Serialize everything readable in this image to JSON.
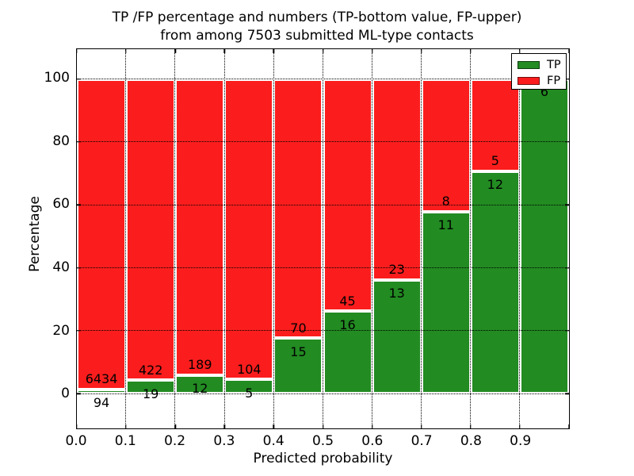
{
  "figure": {
    "title_line1": "TP /FP percentage and numbers (TP-bottom value, FP-upper)",
    "title_line2": "from among 7503 submitted ML-type contacts"
  },
  "colors": {
    "tp_green": "#228b22",
    "fp_red": "#fb1d1d",
    "grid": "#000000",
    "background": "#ffffff"
  },
  "chart_data": {
    "type": "bar",
    "stacked": true,
    "title": "TP /FP percentage and numbers (TP-bottom value, FP-upper)\nfrom among 7503 submitted ML-type contacts",
    "xlabel": "Predicted probability",
    "ylabel": "Percentage",
    "total_contacts_in_title": 7503,
    "xlim": [
      0.0,
      1.0
    ],
    "ylim": [
      -11,
      109.5
    ],
    "x_tick_labels": [
      "0.0",
      "0.1",
      "0.2",
      "0.3",
      "0.4",
      "0.5",
      "0.6",
      "0.7",
      "0.8",
      "0.9"
    ],
    "y_tick_values": [
      0,
      20,
      40,
      60,
      80,
      100
    ],
    "y_tick_labels": [
      "0",
      "20",
      "40",
      "60",
      "80",
      "100"
    ],
    "grid": {
      "style": "dotted",
      "color": "#000000",
      "vertical_at": [
        0.1,
        0.2,
        0.3,
        0.4,
        0.5,
        0.6,
        0.7,
        0.8,
        0.9
      ],
      "horizontal_at": [
        0,
        20,
        40,
        60,
        80,
        100
      ]
    },
    "legend": {
      "position": "upper right",
      "entries": [
        {
          "label": "TP",
          "color": "#228b22"
        },
        {
          "label": "FP",
          "color": "#fb1d1d"
        }
      ]
    },
    "categories": [
      "0.0-0.1",
      "0.1-0.2",
      "0.2-0.3",
      "0.3-0.4",
      "0.4-0.5",
      "0.5-0.6",
      "0.6-0.7",
      "0.7-0.8",
      "0.8-0.9",
      "0.9-1.0"
    ],
    "series": [
      {
        "name": "TP",
        "counts": [
          94,
          19,
          12,
          5,
          15,
          16,
          13,
          11,
          12,
          6
        ],
        "pct": [
          1.44,
          4.31,
          5.97,
          4.59,
          17.65,
          26.23,
          36.11,
          57.89,
          70.59,
          100.0
        ]
      },
      {
        "name": "FP",
        "counts": [
          6434,
          422,
          189,
          104,
          70,
          45,
          23,
          8,
          5,
          0
        ],
        "pct": [
          98.56,
          95.69,
          94.03,
          95.41,
          82.35,
          73.77,
          63.89,
          42.11,
          29.41,
          0.0
        ]
      }
    ],
    "bar_value_labels": {
      "tp": [
        "94",
        "19",
        "12",
        "5",
        "15",
        "16",
        "13",
        "11",
        "12",
        "6"
      ],
      "fp": [
        "6434",
        "422",
        "189",
        "104",
        "70",
        "45",
        "23",
        "8",
        "5",
        ""
      ]
    }
  }
}
